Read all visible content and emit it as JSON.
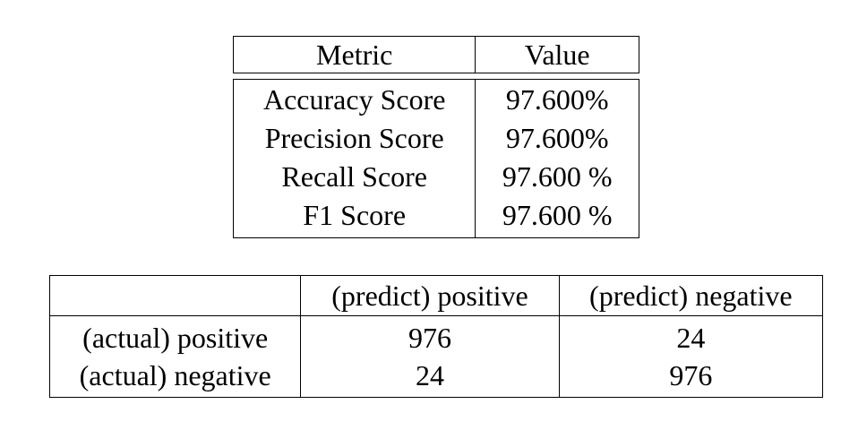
{
  "metrics_table": {
    "headers": [
      "Metric",
      "Value"
    ],
    "rows": [
      {
        "metric": "Accuracy Score",
        "value": "97.600%"
      },
      {
        "metric": "Precision Score",
        "value": "97.600%"
      },
      {
        "metric": "Recall Score",
        "value": "97.600 %"
      },
      {
        "metric": "F1 Score",
        "value": "97.600 %"
      }
    ]
  },
  "confusion_matrix": {
    "corner": "",
    "col_headers": [
      "(predict) positive",
      "(predict) negative"
    ],
    "rows": [
      {
        "label": "(actual) positive",
        "values": [
          "976",
          "24"
        ]
      },
      {
        "label": "(actual) negative",
        "values": [
          "24",
          "976"
        ]
      }
    ]
  }
}
